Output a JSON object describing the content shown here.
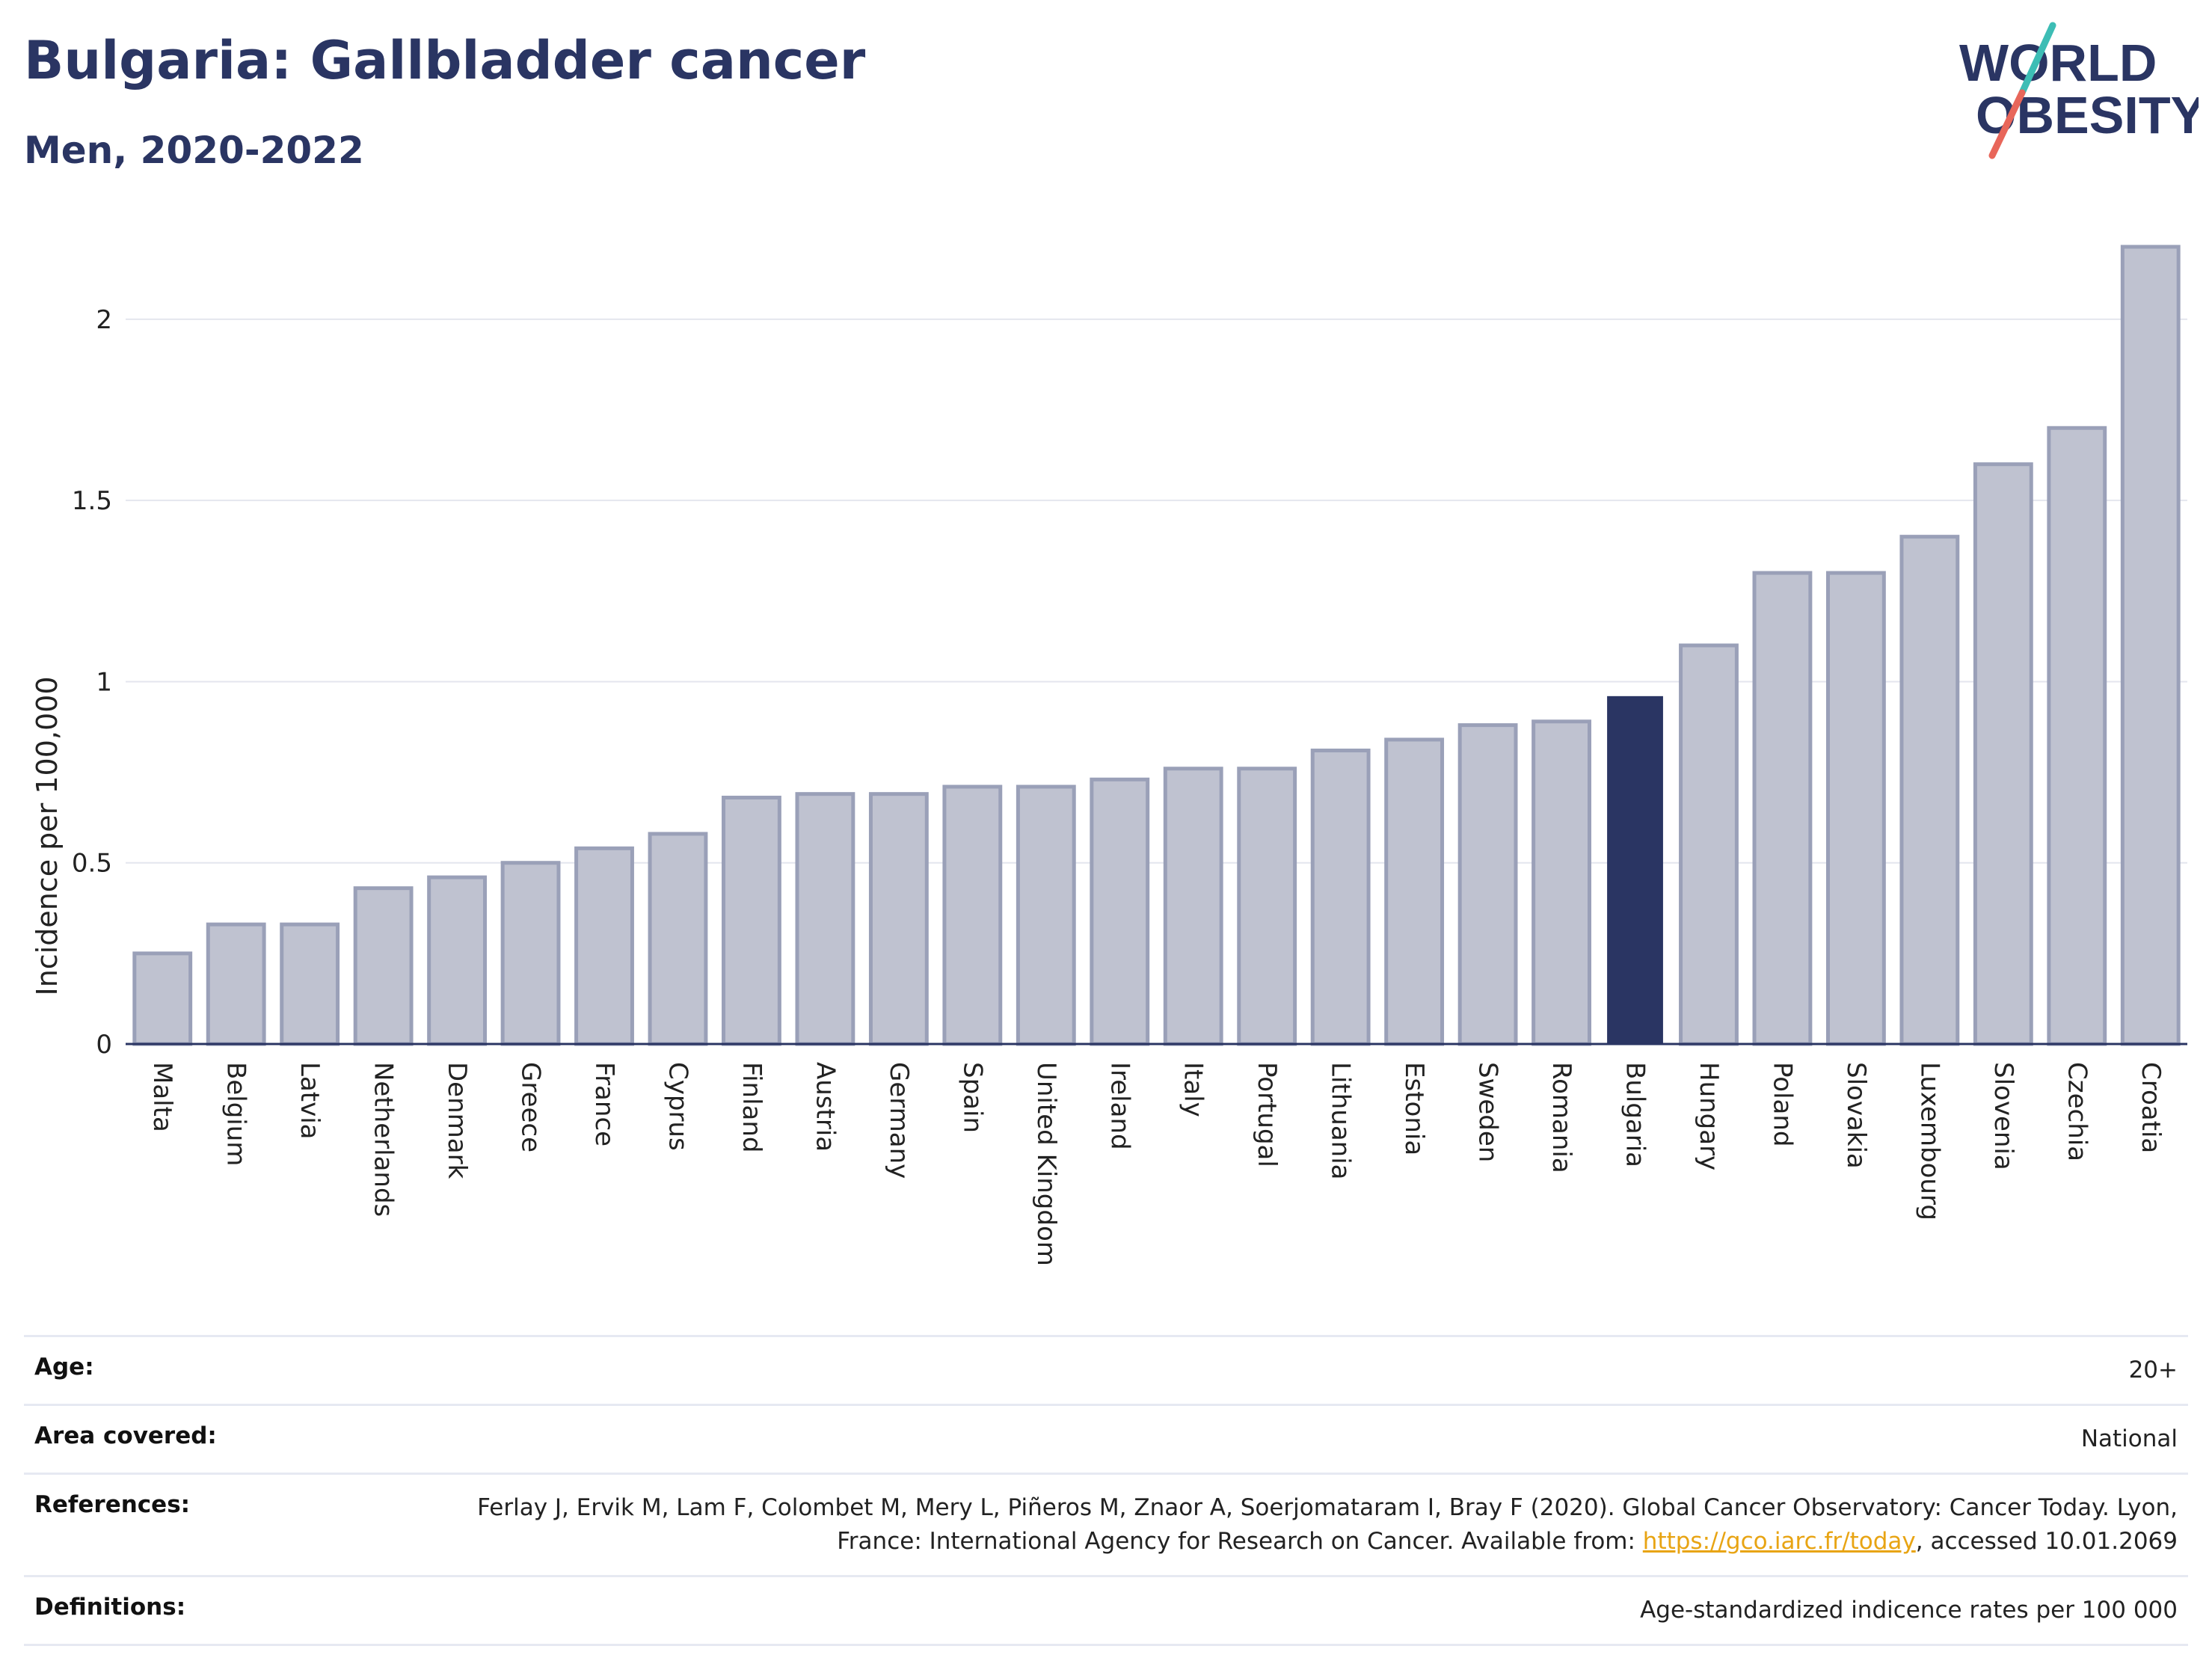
{
  "header": {
    "title": "Bulgaria: Gallbladder cancer",
    "subtitle": "Men, 2020-2022"
  },
  "logo": {
    "line1": "WORLD",
    "line2": "OBESITY"
  },
  "colors": {
    "title": "#2a3563",
    "bar": "#bfc2d0",
    "bar_stroke": "#9aa0b8",
    "highlight": "#2a3563",
    "link": "#e8a413",
    "slash_teal": "#3dbdb5",
    "slash_red": "#e8665a"
  },
  "chart_data": {
    "type": "bar",
    "ylabel": "Incidence per 100,000",
    "ylim": [
      0,
      2.2
    ],
    "yticks": [
      "0",
      "0.5",
      "1",
      "1.5",
      "2"
    ],
    "highlight": "Bulgaria",
    "grid": true,
    "categories": [
      "Malta",
      "Belgium",
      "Latvia",
      "Netherlands",
      "Denmark",
      "Greece",
      "France",
      "Cyprus",
      "Finland",
      "Austria",
      "Germany",
      "Spain",
      "United Kingdom",
      "Ireland",
      "Italy",
      "Portugal",
      "Lithuania",
      "Estonia",
      "Sweden",
      "Romania",
      "Bulgaria",
      "Hungary",
      "Poland",
      "Slovakia",
      "Luxembourg",
      "Slovenia",
      "Czechia",
      "Croatia"
    ],
    "values": [
      0.25,
      0.33,
      0.33,
      0.43,
      0.46,
      0.5,
      0.54,
      0.58,
      0.68,
      0.69,
      0.69,
      0.71,
      0.71,
      0.73,
      0.76,
      0.76,
      0.81,
      0.84,
      0.88,
      0.89,
      0.96,
      1.1,
      1.3,
      1.3,
      1.4,
      1.6,
      1.7,
      2.2
    ]
  },
  "meta": {
    "age_label": "Age:",
    "age_value": "20+",
    "area_label": "Area covered:",
    "area_value": "National",
    "ref_label": "References:",
    "ref_text1": "Ferlay J, Ervik M, Lam F, Colombet M, Mery L, Piñeros M, Znaor A, Soerjomataram I, Bray F (2020). Global Cancer Observatory: Cancer Today. Lyon, France: International Agency for Research on Cancer. Available from: ",
    "ref_link": "https://gco.iarc.fr/today",
    "ref_text2": ", accessed 10.01.2069",
    "def_label": "Definitions:",
    "def_value": "Age-standardized indicence rates per 100 000"
  }
}
